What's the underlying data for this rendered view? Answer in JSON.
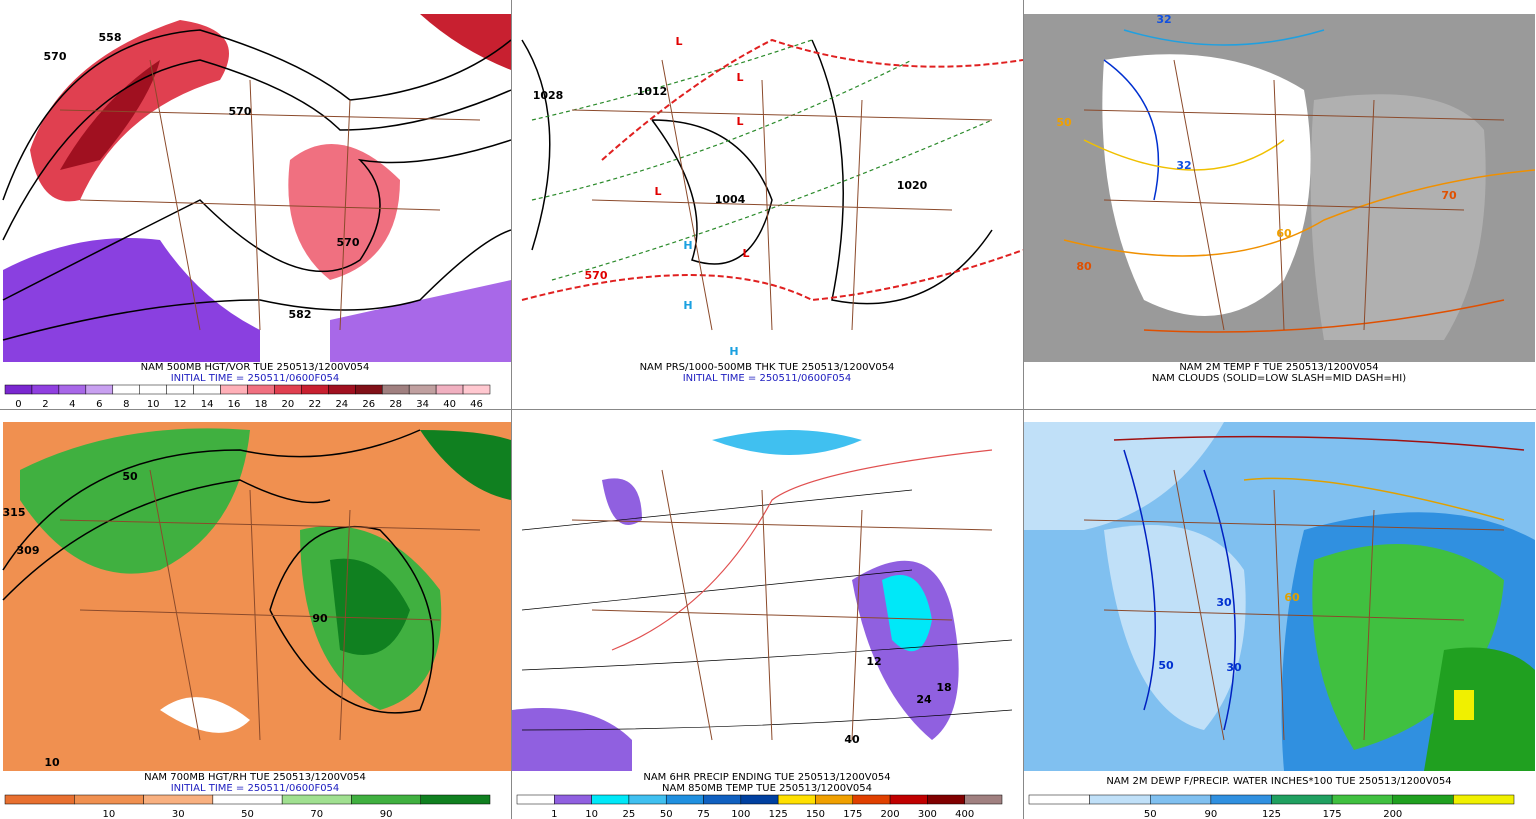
{
  "panels": [
    {
      "captions": [
        {
          "text": "NAM 500MB HGT/VOR TUE 250513/1200V054",
          "color": "#000000"
        },
        {
          "text": "INITIAL TIME = 250511/0600F054",
          "color": "#2020c0"
        }
      ],
      "colorbar": {
        "colors": [
          "#7a28d0",
          "#9040e0",
          "#a868e8",
          "#c8a0f0",
          "#ffffff",
          "#ffffff",
          "#ffffff",
          "#ffffff",
          "#ffb0b8",
          "#f07080",
          "#e04050",
          "#c82030",
          "#a01020",
          "#801018",
          "#a08080",
          "#c0a0a0",
          "#f0b0c0",
          "#ffc8d0"
        ],
        "labels": [
          "0",
          "2",
          "4",
          "6",
          "8",
          "10",
          "12",
          "14",
          "16",
          "18",
          "20",
          "22",
          "24",
          "26",
          "28",
          "34",
          "40",
          "46"
        ]
      },
      "map_labels": [
        "570",
        "558",
        "570",
        "582",
        "570"
      ]
    },
    {
      "captions": [
        {
          "text": "NAM PRS/1000-500MB THK TUE 250513/1200V054",
          "color": "#000000"
        },
        {
          "text": "INITIAL TIME = 250511/0600F054",
          "color": "#2020c0"
        }
      ],
      "map_labels": [
        "L",
        "L",
        "L",
        "L",
        "L",
        "H",
        "H",
        "H",
        "1028",
        "1004",
        "1020",
        "1012",
        "570"
      ]
    },
    {
      "captions": [
        {
          "text": "NAM 2M TEMP F TUE 250513/1200V054",
          "color": "#000000"
        },
        {
          "text": "NAM CLOUDS (SOLID=LOW SLASH=MID DASH=HI)",
          "color": "#000000"
        }
      ],
      "map_labels": [
        "32",
        "32",
        "60",
        "70",
        "80",
        "50"
      ]
    },
    {
      "captions": [
        {
          "text": "NAM 700MB HGT/RH TUE 250513/1200V054",
          "color": "#000000"
        },
        {
          "text": "INITIAL TIME = 250511/0600F054",
          "color": "#2020c0"
        }
      ],
      "colorbar": {
        "colors": [
          "#e87030",
          "#f09050",
          "#f8b080",
          "#ffffff",
          "#a0e090",
          "#40b040",
          "#108020"
        ],
        "labels": [
          "10",
          "30",
          "50",
          "70",
          "90"
        ]
      },
      "map_labels": [
        "309",
        "315",
        "50",
        "90",
        "10"
      ]
    },
    {
      "captions": [
        {
          "text": "NAM 6HR PRECIP ENDING TUE 250513/1200V054",
          "color": "#000000"
        },
        {
          "text": "NAM 850MB TEMP TUE 250513/1200V054",
          "color": "#000000"
        }
      ],
      "colorbar": {
        "colors": [
          "#ffffff",
          "#9060e0",
          "#00e8f8",
          "#40c0f0",
          "#2090e0",
          "#1060c0",
          "#0040a0",
          "#ffe000",
          "#f0a000",
          "#e04000",
          "#c00000",
          "#800000",
          "#a08080"
        ],
        "labels": [
          "1",
          "10",
          "25",
          "50",
          "75",
          "100",
          "125",
          "150",
          "175",
          "200",
          "300",
          "400"
        ]
      },
      "map_labels": [
        "40",
        "12",
        "18",
        "24"
      ]
    },
    {
      "captions": [
        {
          "text": "NAM 2M DEWP F/PRECIP. WATER INCHES*100 TUE 250513/1200V054",
          "color": "#000000"
        }
      ],
      "colorbar": {
        "colors": [
          "#ffffff",
          "#c0e0f8",
          "#80c0f0",
          "#3090e0",
          "#20a060",
          "#40c040",
          "#20a020",
          "#f0f000"
        ],
        "labels": [
          "50",
          "90",
          "125",
          "175",
          "200"
        ]
      },
      "map_labels": [
        "30",
        "50",
        "60",
        "30"
      ]
    }
  ]
}
